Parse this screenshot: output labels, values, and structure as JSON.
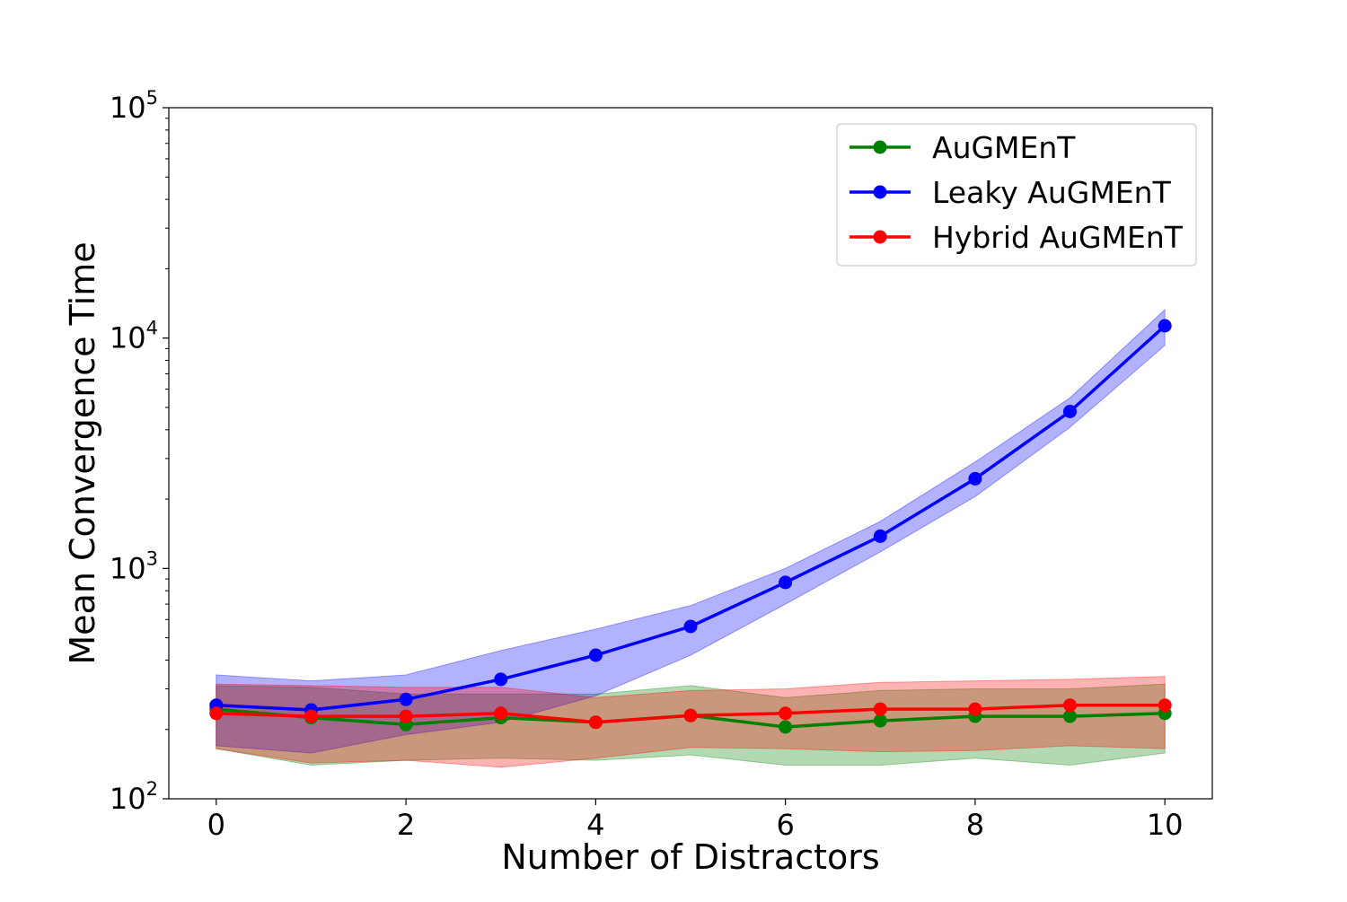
{
  "chart_data": {
    "type": "line",
    "xlabel": "Number of Distractors",
    "ylabel": "Mean Convergence Time",
    "x": [
      0,
      1,
      2,
      3,
      4,
      5,
      6,
      7,
      8,
      9,
      10
    ],
    "xlim": [
      -0.5,
      10.5
    ],
    "ylim": [
      100,
      100000
    ],
    "yscale": "log",
    "xticks": [
      0,
      2,
      4,
      6,
      8,
      10
    ],
    "yticks": [
      {
        "value": 100,
        "base": "10",
        "exp": "2"
      },
      {
        "value": 1000,
        "base": "10",
        "exp": "3"
      },
      {
        "value": 10000,
        "base": "10",
        "exp": "4"
      },
      {
        "value": 100000,
        "base": "10",
        "exp": "5"
      }
    ],
    "grid": false,
    "legend_position": "top-right",
    "series": [
      {
        "name": "AuGMEnT",
        "color": "#008000",
        "values": [
          245,
          225,
          210,
          225,
          215,
          230,
          205,
          218,
          228,
          228,
          235
        ],
        "lower": [
          165,
          140,
          147,
          150,
          147,
          155,
          140,
          140,
          150,
          140,
          158
        ],
        "upper": [
          310,
          305,
          285,
          285,
          285,
          310,
          275,
          295,
          300,
          300,
          315
        ]
      },
      {
        "name": "Leaky AuGMEnT",
        "color": "#0000ff",
        "values": [
          255,
          243,
          270,
          330,
          420,
          560,
          870,
          1380,
          2450,
          4800,
          11300
        ],
        "lower": [
          170,
          158,
          190,
          215,
          280,
          420,
          700,
          1180,
          2050,
          4100,
          9300
        ],
        "upper": [
          345,
          325,
          345,
          440,
          545,
          690,
          1000,
          1600,
          2900,
          5500,
          13300
        ]
      },
      {
        "name": "Hybrid AuGMEnT",
        "color": "#ff0000",
        "values": [
          235,
          228,
          228,
          235,
          215,
          230,
          235,
          245,
          245,
          255,
          255
        ],
        "lower": [
          165,
          143,
          147,
          137,
          150,
          167,
          165,
          160,
          162,
          170,
          165
        ],
        "upper": [
          315,
          310,
          305,
          305,
          275,
          295,
          300,
          320,
          325,
          330,
          340
        ]
      }
    ]
  }
}
